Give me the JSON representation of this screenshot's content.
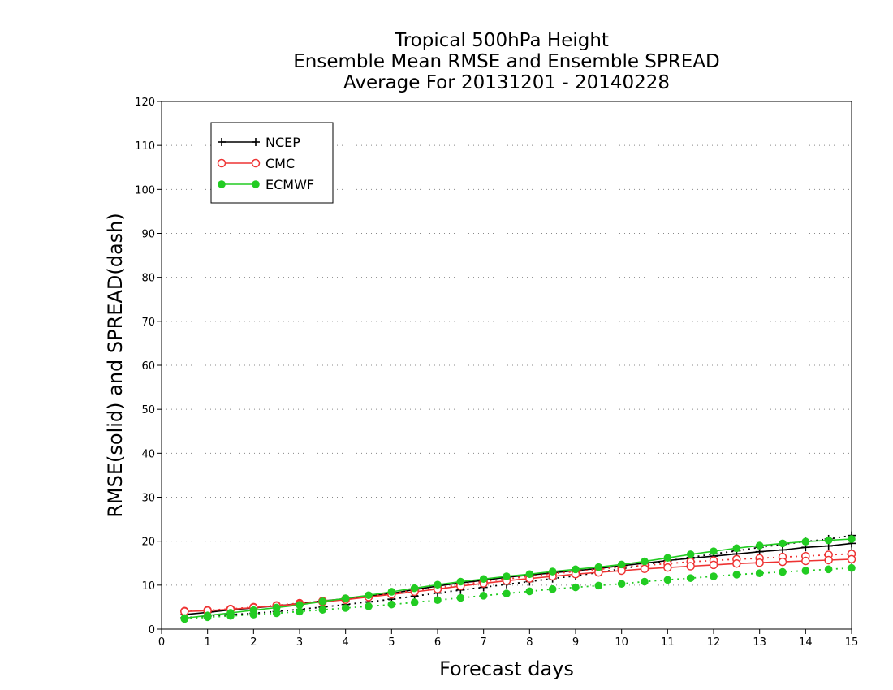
{
  "chart_data": {
    "type": "line",
    "title": [
      "Tropical 500hPa Height",
      "Ensemble Mean RMSE and Ensemble SPREAD",
      "Average For 20131201 - 20140228"
    ],
    "xlabel": "Forecast days",
    "ylabel": "RMSE(solid) and SPREAD(dash)",
    "xlim": [
      0,
      15
    ],
    "ylim": [
      0,
      120
    ],
    "xticks": [
      0,
      1,
      2,
      3,
      4,
      5,
      6,
      7,
      8,
      9,
      10,
      11,
      12,
      13,
      14,
      15
    ],
    "yticks": [
      0,
      10,
      20,
      30,
      40,
      50,
      60,
      70,
      80,
      90,
      100,
      110,
      120
    ],
    "grid": "horizontal dotted",
    "legend_position": "top-left",
    "x": [
      0.5,
      1,
      1.5,
      2,
      2.5,
      3,
      3.5,
      4,
      4.5,
      5,
      5.5,
      6,
      6.5,
      7,
      7.5,
      8,
      8.5,
      9,
      9.5,
      10,
      10.5,
      11,
      11.5,
      12,
      12.5,
      13,
      13.5,
      14,
      14.5,
      15
    ],
    "series": [
      {
        "name": "NCEP",
        "color": "#000000",
        "marker": "plus",
        "rmse": [
          3.3,
          3.8,
          4.4,
          4.8,
          5.3,
          5.8,
          6.4,
          6.9,
          7.5,
          8.1,
          9.0,
          9.8,
          10.5,
          11.1,
          11.8,
          12.3,
          12.8,
          13.3,
          13.8,
          14.4,
          15.0,
          15.6,
          16.1,
          16.6,
          17.1,
          17.6,
          18.0,
          18.6,
          18.9,
          19.5
        ],
        "spread": [
          2.6,
          2.9,
          3.3,
          3.6,
          4.0,
          4.5,
          5.0,
          5.6,
          6.2,
          6.8,
          7.5,
          8.2,
          8.9,
          9.5,
          10.2,
          10.8,
          11.5,
          12.1,
          12.9,
          13.7,
          14.6,
          15.5,
          16.3,
          17.1,
          17.8,
          18.6,
          19.3,
          19.9,
          20.5,
          21.3
        ]
      },
      {
        "name": "CMC",
        "color": "#ee3333",
        "marker": "open-circle",
        "rmse": [
          4.0,
          4.2,
          4.5,
          4.9,
          5.3,
          5.7,
          6.2,
          6.7,
          7.3,
          7.9,
          8.5,
          9.1,
          9.8,
          10.4,
          11.0,
          11.5,
          12.0,
          12.5,
          12.9,
          13.3,
          13.7,
          14.0,
          14.3,
          14.6,
          14.9,
          15.1,
          15.3,
          15.5,
          15.7,
          15.9
        ],
        "spread": [
          4.1,
          4.3,
          4.6,
          5.0,
          5.4,
          5.9,
          6.4,
          6.9,
          7.5,
          8.1,
          8.8,
          9.4,
          10.1,
          10.8,
          11.4,
          12.0,
          12.6,
          13.1,
          13.6,
          14.1,
          14.5,
          14.9,
          15.3,
          15.6,
          15.9,
          16.1,
          16.4,
          16.6,
          16.9,
          17.1
        ]
      },
      {
        "name": "ECMWF",
        "color": "#22cc22",
        "marker": "filled-circle",
        "rmse": [
          2.5,
          3.1,
          3.7,
          4.3,
          4.9,
          5.5,
          6.3,
          7.0,
          7.7,
          8.5,
          9.3,
          10.1,
          10.8,
          11.4,
          12.0,
          12.5,
          13.1,
          13.6,
          14.1,
          14.7,
          15.4,
          16.2,
          17.0,
          17.7,
          18.4,
          19.0,
          19.5,
          19.9,
          20.2,
          20.5
        ],
        "spread": [
          2.3,
          2.7,
          3.0,
          3.3,
          3.6,
          4.0,
          4.4,
          4.8,
          5.2,
          5.6,
          6.1,
          6.6,
          7.1,
          7.6,
          8.1,
          8.6,
          9.1,
          9.5,
          9.9,
          10.3,
          10.8,
          11.2,
          11.6,
          12.0,
          12.4,
          12.7,
          13.0,
          13.3,
          13.6,
          13.9
        ]
      }
    ]
  }
}
